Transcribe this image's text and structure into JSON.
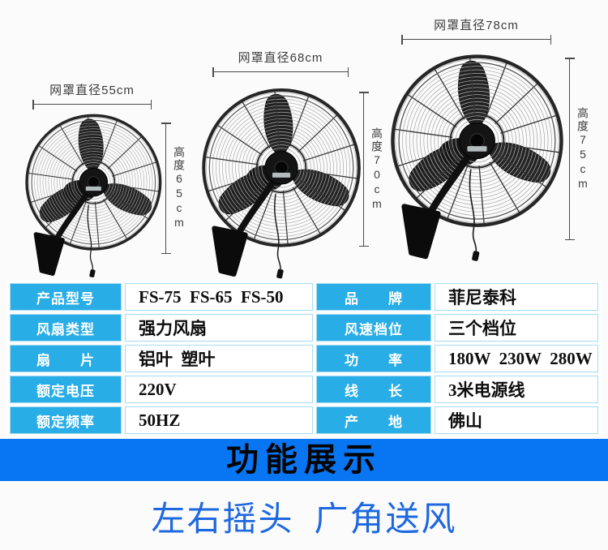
{
  "page": {
    "background": "#fbfbfb"
  },
  "fans": [
    {
      "diameter_label": "网罩直径55cm",
      "height_label": "高度65cm"
    },
    {
      "diameter_label": "网罩直径68cm",
      "height_label": "高度70cm"
    },
    {
      "diameter_label": "网罩直径78cm",
      "height_label": "高度75cm"
    }
  ],
  "spec_table": {
    "label_bg": "#29ade6",
    "border_color": "#a6dcf2",
    "rows": [
      {
        "label1": "产品型号",
        "value1": "FS-75  FS-65  FS-50",
        "label2": "品　　牌",
        "value2": "菲尼泰科"
      },
      {
        "label1": "风扇类型",
        "value1": "强力风扇",
        "label2": "风速档位",
        "value2": "三个档位"
      },
      {
        "label1": "扇　　片",
        "value1": "铝叶  塑叶",
        "label2": "功　　率",
        "value2": "180W  230W  280W"
      },
      {
        "label1": "额定电压",
        "value1": "220V",
        "label2": "线　　长",
        "value2": "3米电源线"
      },
      {
        "label1": "额定频率",
        "value1": "50HZ",
        "label2": "产　　地",
        "value2": "佛山"
      }
    ]
  },
  "banner": {
    "text": "功能展示",
    "bg": "#0875f2",
    "text_color": "#050505"
  },
  "caption": {
    "text": "左右摇头  广角送风",
    "color": "#1e68e0"
  }
}
